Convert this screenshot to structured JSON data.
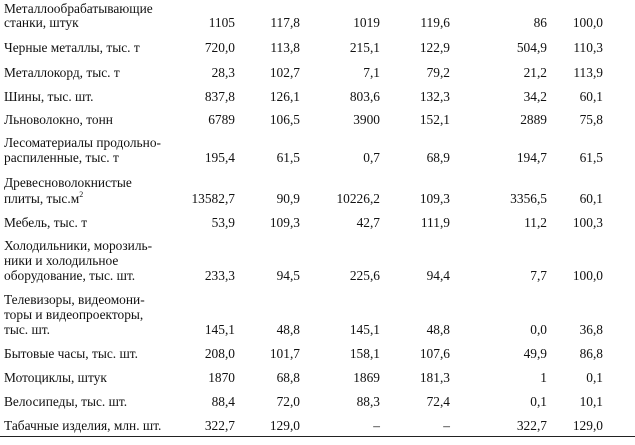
{
  "rows": [
    {
      "label": [
        "Металлообрабатывающие",
        "станки, штук"
      ],
      "values": [
        "1105",
        "117,8",
        "1019",
        "119,6",
        "86",
        "100,0"
      ]
    },
    {
      "label": [
        "Черные металлы, тыс. т"
      ],
      "values": [
        "720,0",
        "113,8",
        "215,1",
        "122,9",
        "504,9",
        "110,3"
      ]
    },
    {
      "label": [
        "Металлокорд, тыс. т"
      ],
      "values": [
        "28,3",
        "102,7",
        "7,1",
        "79,2",
        "21,2",
        "113,9"
      ]
    },
    {
      "label": [
        "Шины, тыс. шт."
      ],
      "values": [
        "837,8",
        "126,1",
        "803,6",
        "132,3",
        "34,2",
        "60,1"
      ]
    },
    {
      "label": [
        "Льноволокно, тонн"
      ],
      "values": [
        "6789",
        "106,5",
        "3900",
        "152,1",
        "2889",
        "75,8"
      ]
    },
    {
      "label": [
        "Лесоматериалы продольно-",
        "распиленные, тыс. т"
      ],
      "values": [
        "195,4",
        "61,5",
        "0,7",
        "68,9",
        "194,7",
        "61,5"
      ]
    },
    {
      "label": [
        "Древесноволокнистые",
        "плиты, тыс.м"
      ],
      "label_sup": "2",
      "values": [
        "13582,7",
        "90,9",
        "10226,2",
        "109,3",
        "3356,5",
        "60,1"
      ]
    },
    {
      "label": [
        "Мебель, тыс. т"
      ],
      "values": [
        "53,9",
        "109,3",
        "42,7",
        "111,9",
        "11,2",
        "100,3"
      ]
    },
    {
      "label": [
        "Холодильники, морозиль-",
        "ники и холодильное",
        "оборудование, тыс. шт."
      ],
      "values": [
        "233,3",
        "94,5",
        "225,6",
        "94,4",
        "7,7",
        "100,0"
      ]
    },
    {
      "label": [
        "Телевизоры, видеомони-",
        "торы и видеопроекторы,",
        "тыс. шт."
      ],
      "values": [
        "145,1",
        "48,8",
        "145,1",
        "48,8",
        "0,0",
        "36,8"
      ]
    },
    {
      "label": [
        "Бытовые часы, тыс. шт."
      ],
      "values": [
        "208,0",
        "101,7",
        "158,1",
        "107,6",
        "49,9",
        "86,8"
      ]
    },
    {
      "label": [
        "Мотоциклы, штук"
      ],
      "values": [
        "1870",
        "68,8",
        "1869",
        "181,3",
        "1",
        "0,1"
      ]
    },
    {
      "label": [
        "Велосипеды, тыс. шт."
      ],
      "values": [
        "88,4",
        "72,0",
        "88,3",
        "72,4",
        "0,1",
        "10,1"
      ]
    },
    {
      "label": [
        "Табачные изделия, млн. шт."
      ],
      "values": [
        "322,7",
        "129,0",
        "–",
        "–",
        "322,7",
        "129,0"
      ]
    }
  ]
}
